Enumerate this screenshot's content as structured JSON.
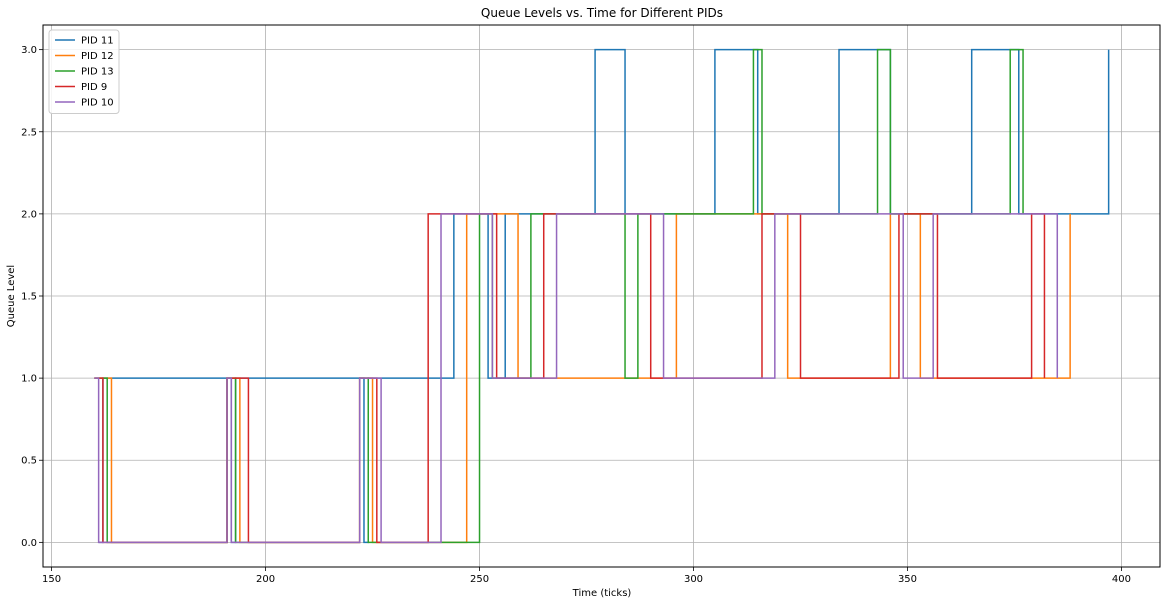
{
  "chart_data": {
    "type": "line",
    "step": "post",
    "title": "Queue Levels vs. Time for Different PIDs",
    "xlabel": "Time (ticks)",
    "ylabel": "Queue Level",
    "xlim": [
      148,
      409
    ],
    "ylim": [
      -0.15,
      3.15
    ],
    "xticks": [
      150,
      200,
      250,
      300,
      350,
      400
    ],
    "yticks": [
      0.0,
      0.5,
      1.0,
      1.5,
      2.0,
      2.5,
      3.0
    ],
    "xtick_labels": [
      "150",
      "200",
      "250",
      "300",
      "350",
      "400"
    ],
    "ytick_labels": [
      "0.0",
      "0.5",
      "1.0",
      "1.5",
      "2.0",
      "2.5",
      "3.0"
    ],
    "grid": true,
    "legend_position": "top-left",
    "series": [
      {
        "name": "PID 11",
        "color": "#1f77b4",
        "x": [
          161,
          162,
          192,
          193,
          223,
          224,
          244,
          252,
          256,
          277,
          284,
          305,
          315,
          334,
          346,
          365,
          376,
          397
        ],
        "y": [
          0,
          1,
          0,
          1,
          0,
          1,
          2,
          1,
          2,
          3,
          2,
          3,
          2,
          3,
          2,
          3,
          2,
          3
        ]
      },
      {
        "name": "PID 12",
        "color": "#ff7f0e",
        "x": [
          160,
          164,
          191,
          194,
          222,
          225,
          247,
          259,
          296,
          322,
          346,
          353,
          388
        ],
        "y": [
          1,
          0,
          1,
          0,
          1,
          0,
          2,
          1,
          2,
          1,
          2,
          1,
          2
        ]
      },
      {
        "name": "PID 13",
        "color": "#2ca02c",
        "x": [
          160,
          163,
          191,
          193,
          222,
          224,
          250,
          253,
          262,
          284,
          287,
          314,
          316,
          343,
          346,
          374,
          377
        ],
        "y": [
          1,
          0,
          1,
          0,
          1,
          0,
          2,
          1,
          2,
          1,
          2,
          3,
          2,
          3,
          2,
          3,
          2
        ]
      },
      {
        "name": "PID 9",
        "color": "#d62728",
        "x": [
          160,
          162,
          191,
          196,
          222,
          226,
          238,
          254,
          265,
          290,
          316,
          325,
          348,
          357,
          379,
          382
        ],
        "y": [
          1,
          0,
          1,
          0,
          1,
          0,
          2,
          1,
          2,
          1,
          2,
          1,
          2,
          1,
          2,
          1
        ]
      },
      {
        "name": "PID 10",
        "color": "#9467bd",
        "x": [
          160,
          161,
          191,
          192,
          222,
          227,
          241,
          253,
          268,
          293,
          319,
          349,
          356,
          385
        ],
        "y": [
          1,
          0,
          1,
          0,
          1,
          0,
          2,
          1,
          2,
          1,
          2,
          1,
          2,
          1
        ]
      }
    ]
  }
}
